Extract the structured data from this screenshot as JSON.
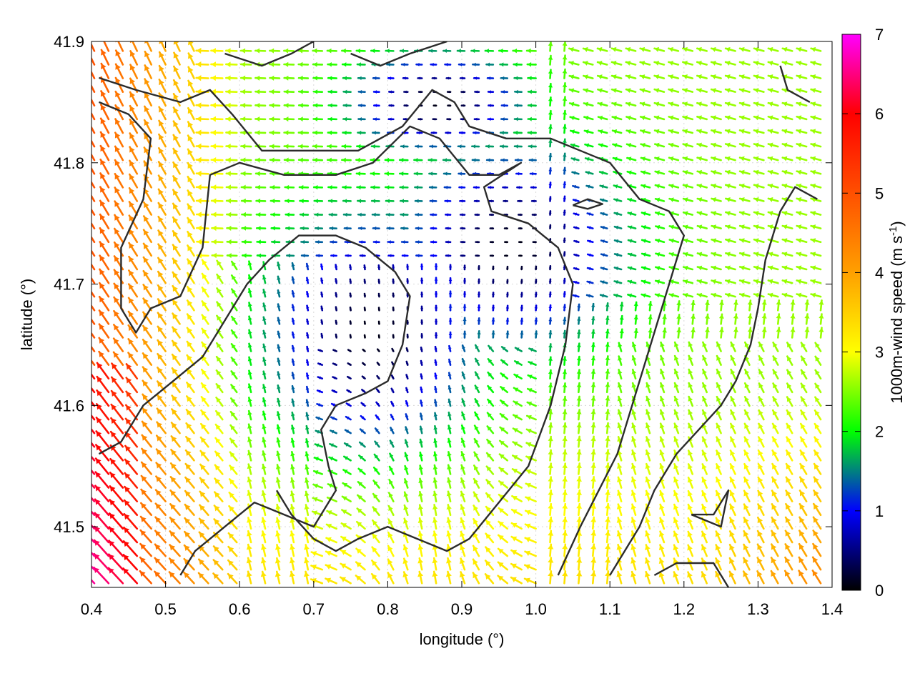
{
  "chart_data": {
    "type": "vector-field",
    "xlabel": "longitude (°)",
    "ylabel": "latitude (°)",
    "xlim": [
      0.4,
      1.4
    ],
    "ylim": [
      41.45,
      41.9
    ],
    "xticks": [
      "0.4",
      "0.5",
      "0.6",
      "0.7",
      "0.8",
      "0.9",
      "1.0",
      "1.1",
      "1.2",
      "1.3",
      "1.4"
    ],
    "yticks": [
      "41.5",
      "41.6",
      "41.7",
      "41.8",
      "41.9"
    ],
    "colorbar": {
      "label": "1000m-wind speed (m s-1)",
      "range": [
        0,
        7
      ],
      "ticks": [
        "0",
        "1",
        "2",
        "3",
        "4",
        "5",
        "6",
        "7"
      ]
    },
    "contours": [
      [
        [
          0.41,
          41.87
        ],
        [
          0.46,
          41.86
        ],
        [
          0.52,
          41.85
        ],
        [
          0.56,
          41.86
        ],
        [
          0.59,
          41.84
        ],
        [
          0.63,
          41.81
        ],
        [
          0.69,
          41.81
        ],
        [
          0.76,
          41.81
        ],
        [
          0.82,
          41.83
        ],
        [
          0.86,
          41.86
        ],
        [
          0.89,
          41.85
        ],
        [
          0.91,
          41.83
        ],
        [
          0.96,
          41.82
        ],
        [
          1.02,
          41.82
        ],
        [
          1.06,
          41.81
        ],
        [
          1.1,
          41.8
        ],
        [
          1.14,
          41.77
        ],
        [
          1.18,
          41.76
        ],
        [
          1.2,
          41.74
        ],
        [
          1.17,
          41.68
        ],
        [
          1.14,
          41.62
        ],
        [
          1.11,
          41.56
        ],
        [
          1.06,
          41.5
        ],
        [
          1.03,
          41.46
        ]
      ],
      [
        [
          0.41,
          41.85
        ],
        [
          0.45,
          41.84
        ],
        [
          0.48,
          41.82
        ],
        [
          0.47,
          41.77
        ],
        [
          0.44,
          41.73
        ],
        [
          0.44,
          41.68
        ],
        [
          0.46,
          41.66
        ],
        [
          0.48,
          41.68
        ],
        [
          0.52,
          41.69
        ],
        [
          0.55,
          41.73
        ],
        [
          0.56,
          41.79
        ],
        [
          0.6,
          41.8
        ],
        [
          0.66,
          41.79
        ],
        [
          0.73,
          41.79
        ],
        [
          0.78,
          41.8
        ],
        [
          0.83,
          41.83
        ],
        [
          0.87,
          41.82
        ],
        [
          0.91,
          41.79
        ],
        [
          0.95,
          41.79
        ],
        [
          0.98,
          41.8
        ],
        [
          0.93,
          41.78
        ],
        [
          0.94,
          41.76
        ],
        [
          0.99,
          41.75
        ],
        [
          1.03,
          41.73
        ],
        [
          1.05,
          41.7
        ],
        [
          1.04,
          41.65
        ],
        [
          1.02,
          41.6
        ],
        [
          0.99,
          41.55
        ],
        [
          0.95,
          41.52
        ],
        [
          0.91,
          41.49
        ],
        [
          0.88,
          41.48
        ],
        [
          0.84,
          41.49
        ],
        [
          0.8,
          41.5
        ],
        [
          0.76,
          41.49
        ],
        [
          0.73,
          41.48
        ],
        [
          0.7,
          41.49
        ],
        [
          0.67,
          41.51
        ],
        [
          0.65,
          41.53
        ]
      ],
      [
        [
          0.41,
          41.56
        ],
        [
          0.44,
          41.57
        ],
        [
          0.47,
          41.6
        ],
        [
          0.51,
          41.62
        ],
        [
          0.55,
          41.64
        ],
        [
          0.58,
          41.67
        ],
        [
          0.61,
          41.7
        ],
        [
          0.64,
          41.72
        ],
        [
          0.68,
          41.74
        ],
        [
          0.73,
          41.74
        ],
        [
          0.77,
          41.73
        ],
        [
          0.81,
          41.71
        ],
        [
          0.83,
          41.69
        ],
        [
          0.82,
          41.65
        ],
        [
          0.8,
          41.62
        ],
        [
          0.77,
          41.61
        ],
        [
          0.73,
          41.6
        ],
        [
          0.71,
          41.58
        ],
        [
          0.72,
          41.55
        ],
        [
          0.73,
          41.53
        ],
        [
          0.7,
          41.5
        ],
        [
          0.66,
          41.51
        ],
        [
          0.62,
          41.52
        ],
        [
          0.58,
          41.5
        ],
        [
          0.54,
          41.48
        ],
        [
          0.52,
          41.46
        ]
      ],
      [
        [
          1.38,
          41.77
        ],
        [
          1.35,
          41.78
        ],
        [
          1.33,
          41.76
        ],
        [
          1.31,
          41.72
        ],
        [
          1.3,
          41.68
        ],
        [
          1.29,
          41.65
        ],
        [
          1.27,
          41.62
        ],
        [
          1.25,
          41.6
        ],
        [
          1.22,
          41.58
        ],
        [
          1.19,
          41.56
        ],
        [
          1.16,
          41.53
        ],
        [
          1.14,
          41.5
        ],
        [
          1.12,
          41.48
        ],
        [
          1.1,
          41.46
        ]
      ],
      [
        [
          1.21,
          41.51
        ],
        [
          1.24,
          41.51
        ],
        [
          1.26,
          41.53
        ],
        [
          1.25,
          41.5
        ],
        [
          1.21,
          41.51
        ]
      ],
      [
        [
          1.33,
          41.88
        ],
        [
          1.34,
          41.86
        ],
        [
          1.37,
          41.85
        ]
      ],
      [
        [
          1.26,
          41.45
        ],
        [
          1.24,
          41.47
        ],
        [
          1.19,
          41.47
        ],
        [
          1.16,
          41.46
        ]
      ],
      [
        [
          1.05,
          41.765
        ],
        [
          1.07,
          41.762
        ],
        [
          1.09,
          41.766
        ],
        [
          1.07,
          41.77
        ],
        [
          1.05,
          41.765
        ]
      ],
      [
        [
          0.58,
          41.89
        ],
        [
          0.63,
          41.88
        ],
        [
          0.67,
          41.89
        ],
        [
          0.7,
          41.9
        ]
      ],
      [
        [
          0.75,
          41.89
        ],
        [
          0.79,
          41.88
        ],
        [
          0.83,
          41.89
        ],
        [
          0.88,
          41.9
        ]
      ]
    ]
  }
}
